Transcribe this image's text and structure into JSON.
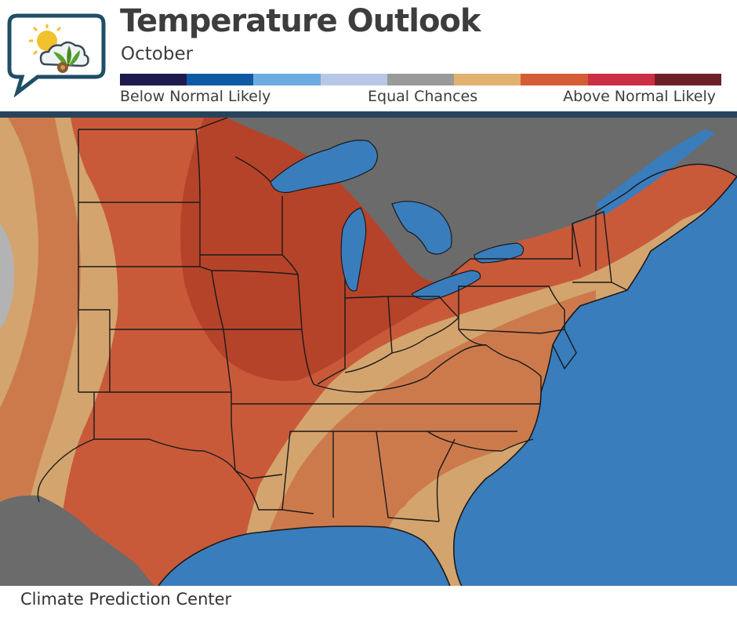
{
  "header": {
    "title": "Temperature Outlook",
    "subtitle": "October"
  },
  "legend": {
    "labels": {
      "below": "Below Normal Likely",
      "equal": "Equal Chances",
      "above": "Above Normal Likely"
    },
    "colors": [
      "#1d1a4e",
      "#0d5aa2",
      "#6cace0",
      "#b8c7e6",
      "#9a9a9a",
      "#e3b16e",
      "#d45d35",
      "#cc2e45",
      "#6d2028"
    ]
  },
  "map": {
    "colors": {
      "ocean": "#3a7dbd",
      "canada": "#6b6b6b",
      "mexico": "#6b6b6b",
      "above_60": "#b5432a",
      "above_50": "#c85a3a",
      "above_40": "#cc7a4c",
      "above_33": "#d4a46e",
      "equal": "#b3b3b3",
      "borders": "#1a1a1a"
    }
  },
  "footer": {
    "source": "Climate Prediction Center"
  }
}
